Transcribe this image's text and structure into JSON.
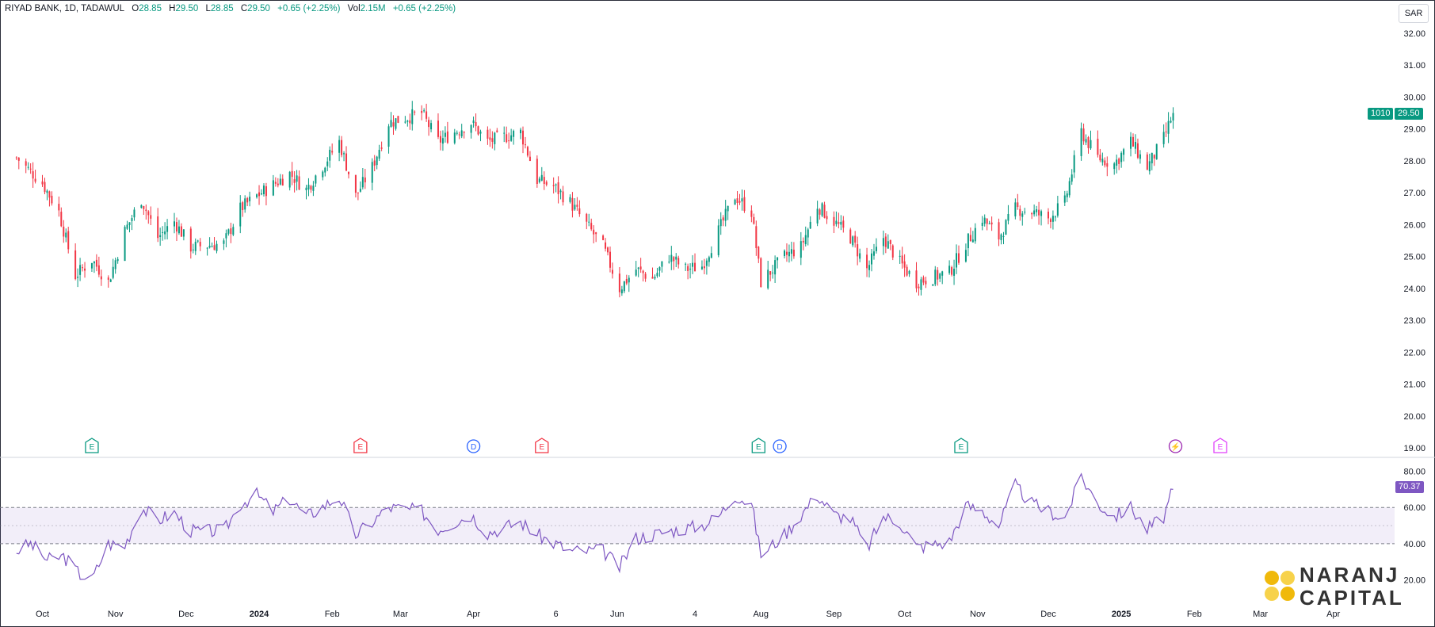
{
  "header": {
    "symbol": "RIYAD BANK, 1D, TADAWUL",
    "open_label": "O",
    "open": "28.85",
    "high_label": "H",
    "high": "29.50",
    "low_label": "L",
    "low": "28.85",
    "close_label": "C",
    "close": "29.50",
    "change": "+0.65 (+2.25%)",
    "vol_label": "Vol",
    "vol": "2.15M",
    "vol_change": "+0.65 (+2.25%)"
  },
  "currency": "SAR",
  "price_badge": {
    "symbol_code": "1010",
    "price": "29.50"
  },
  "rsi_badge": "70.37",
  "logo": {
    "line1": "NARANJ",
    "line2": "CAPITAL"
  },
  "colors": {
    "up": "#089981",
    "down": "#f23645",
    "rsi": "#7e57c2",
    "band": "#7e57c2"
  },
  "chart_data": [
    {
      "type": "candlestick",
      "price_axis": {
        "ylim": [
          19.0,
          32.0
        ],
        "ticks": [
          "32.00",
          "31.00",
          "30.00",
          "29.00",
          "28.00",
          "27.00",
          "26.00",
          "25.00",
          "24.00",
          "23.00",
          "22.00",
          "21.00",
          "20.00",
          "19.00"
        ]
      },
      "time_axis": {
        "ticks": [
          "Oct",
          "Nov",
          "Dec",
          "2024",
          "Feb",
          "Mar",
          "Apr",
          "6",
          "Jun",
          "4",
          "Aug",
          "Sep",
          "Oct",
          "Nov",
          "Dec",
          "2025",
          "Feb",
          "Mar",
          "Apr"
        ]
      },
      "close_path": [
        [
          "Sep 20 2023",
          28.1
        ],
        [
          "Oct 1 2023",
          27.3
        ],
        [
          "Oct 8 2023",
          26.4
        ],
        [
          "Oct 15 2023",
          24.4
        ],
        [
          "Oct 22 2023",
          24.9
        ],
        [
          "Oct 29 2023",
          24.2
        ],
        [
          "Nov 5 2023",
          25.8
        ],
        [
          "Nov 12 2023",
          26.8
        ],
        [
          "Nov 19 2023",
          25.6
        ],
        [
          "Nov 26 2023",
          26.1
        ],
        [
          "Dec 3 2023",
          25.3
        ],
        [
          "Dec 17 2023",
          25.4
        ],
        [
          "Dec 24 2023",
          26.5
        ],
        [
          "Dec 31 2023",
          26.9
        ],
        [
          "Jan 14 2024",
          27.6
        ],
        [
          "Jan 21 2024",
          27.1
        ],
        [
          "Feb 4 2024",
          28.6
        ],
        [
          "Feb 11 2024",
          26.9
        ],
        [
          "Feb 18 2024",
          27.8
        ],
        [
          "Feb 25 2024",
          29.2
        ],
        [
          "Mar 10 2024",
          29.5
        ],
        [
          "Mar 17 2024",
          28.6
        ],
        [
          "Mar 31 2024",
          29.2
        ],
        [
          "Apr 7 2024",
          28.6
        ],
        [
          "Apr 21 2024",
          28.9
        ],
        [
          "Apr 28 2024",
          27.4
        ],
        [
          "May 5 2024",
          27.2
        ],
        [
          "May 12 2024",
          26.7
        ],
        [
          "May 19 2024",
          26.0
        ],
        [
          "May 26 2024",
          25.3
        ],
        [
          "Jun 2 2024",
          24.0
        ],
        [
          "Jun 9 2024",
          24.6
        ],
        [
          "Jun 16 2024",
          24.3
        ],
        [
          "Jun 23 2024",
          25.0
        ],
        [
          "Jun 30 2024",
          24.6
        ],
        [
          "Jul 7 2024",
          24.7
        ],
        [
          "Jul 14 2024",
          25.8
        ],
        [
          "Jul 21 2024",
          26.9
        ],
        [
          "Jul 28 2024",
          26.4
        ],
        [
          "Aug 1 2024",
          24.2
        ],
        [
          "Aug 11 2024",
          25.0
        ],
        [
          "Aug 18 2024",
          25.3
        ],
        [
          "Aug 25 2024",
          26.6
        ],
        [
          "Sep 1 2024",
          26.1
        ],
        [
          "Sep 8 2024",
          25.6
        ],
        [
          "Sep 15 2024",
          24.6
        ],
        [
          "Sep 22 2024",
          25.6
        ],
        [
          "Sep 29 2024",
          24.8
        ],
        [
          "Oct 6 2024",
          24.2
        ],
        [
          "Oct 20 2024",
          24.5
        ],
        [
          "Oct 27 2024",
          25.4
        ],
        [
          "Nov 3 2024",
          26.2
        ],
        [
          "Nov 10 2024",
          25.6
        ],
        [
          "Nov 17 2024",
          26.5
        ],
        [
          "Nov 24 2024",
          26.4
        ],
        [
          "Dec 1 2024",
          26.2
        ],
        [
          "Dec 8 2024",
          26.7
        ],
        [
          "Dec 15 2024",
          28.9
        ],
        [
          "Dec 22 2024",
          28.1
        ],
        [
          "Dec 29 2024",
          27.9
        ],
        [
          "Jan 5 2025",
          28.6
        ],
        [
          "Jan 12 2025",
          27.8
        ],
        [
          "Jan 19 2025",
          28.7
        ],
        [
          "Jan 23 2025",
          29.5
        ]
      ]
    },
    {
      "type": "line",
      "name": "RSI",
      "ylim": [
        15,
        82
      ],
      "ticks": [
        "80.00",
        "60.00",
        "40.00",
        "20.00"
      ],
      "band": [
        40,
        60
      ],
      "mid": 50,
      "path": [
        [
          "Sep 20 2023",
          36
        ],
        [
          "Sep 26 2023",
          40
        ],
        [
          "Oct 3 2023",
          31
        ],
        [
          "Oct 10 2023",
          33
        ],
        [
          "Oct 17 2023",
          23
        ],
        [
          "Oct 22 2023",
          20
        ],
        [
          "Oct 29 2023",
          40
        ],
        [
          "Nov 5 2023",
          39
        ],
        [
          "Nov 12 2023",
          60
        ],
        [
          "Nov 19 2023",
          53
        ],
        [
          "Nov 26 2023",
          57
        ],
        [
          "Dec 3 2023",
          47
        ],
        [
          "Dec 17 2023",
          47
        ],
        [
          "Dec 24 2023",
          62
        ],
        [
          "Dec 31 2023",
          67
        ],
        [
          "Jan 7 2024",
          58
        ],
        [
          "Jan 14 2024",
          65
        ],
        [
          "Jan 21 2024",
          55
        ],
        [
          "Feb 4 2024",
          66
        ],
        [
          "Feb 11 2024",
          45
        ],
        [
          "Feb 18 2024",
          52
        ],
        [
          "Feb 25 2024",
          60
        ],
        [
          "Mar 10 2024",
          58
        ],
        [
          "Mar 17 2024",
          48
        ],
        [
          "Mar 31 2024",
          56
        ],
        [
          "Apr 7 2024",
          46
        ],
        [
          "Apr 21 2024",
          52
        ],
        [
          "Apr 28 2024",
          45
        ],
        [
          "May 12 2024",
          36
        ],
        [
          "May 26 2024",
          36
        ],
        [
          "Jun 2 2024",
          27
        ],
        [
          "Jun 9 2024",
          43
        ],
        [
          "Jun 23 2024",
          47
        ],
        [
          "Jul 7 2024",
          50
        ],
        [
          "Jul 14 2024",
          55
        ],
        [
          "Jul 21 2024",
          67
        ],
        [
          "Jul 28 2024",
          62
        ],
        [
          "Aug 1 2024",
          34
        ],
        [
          "Aug 11 2024",
          45
        ],
        [
          "Aug 25 2024",
          67
        ],
        [
          "Sep 1 2024",
          56
        ],
        [
          "Sep 8 2024",
          54
        ],
        [
          "Sep 15 2024",
          37
        ],
        [
          "Sep 22 2024",
          55
        ],
        [
          "Sep 29 2024",
          52
        ],
        [
          "Oct 6 2024",
          38
        ],
        [
          "Oct 20 2024",
          41
        ],
        [
          "Oct 27 2024",
          61
        ],
        [
          "Nov 3 2024",
          58
        ],
        [
          "Nov 10 2024",
          50
        ],
        [
          "Nov 17 2024",
          72
        ],
        [
          "Nov 24 2024",
          62
        ],
        [
          "Dec 1 2024",
          58
        ],
        [
          "Dec 8 2024",
          54
        ],
        [
          "Dec 15 2024",
          77
        ],
        [
          "Dec 22 2024",
          62
        ],
        [
          "Dec 29 2024",
          55
        ],
        [
          "Jan 5 2025",
          60
        ],
        [
          "Jan 12 2025",
          48
        ],
        [
          "Jan 19 2025",
          55
        ],
        [
          "Jan 23 2025",
          70
        ]
      ]
    }
  ],
  "events": [
    {
      "label": "E",
      "date": "Oct 22 2023",
      "color": "#089981"
    },
    {
      "label": "E",
      "date": "Feb 13 2024",
      "color": "#f23645"
    },
    {
      "label": "D",
      "date": "Apr 1 2024",
      "color": "#2962ff"
    },
    {
      "label": "E",
      "date": "Apr 30 2024",
      "color": "#f23645"
    },
    {
      "label": "E",
      "date": "Jul 31 2024",
      "color": "#089981"
    },
    {
      "label": "D",
      "date": "Aug 9 2024",
      "color": "#2962ff"
    },
    {
      "label": "E",
      "date": "Oct 25 2024",
      "color": "#089981"
    },
    {
      "label": "⚡",
      "date": "Jan 24 2025",
      "color": "#9c27b0"
    },
    {
      "label": "E",
      "date": "Feb 12 2025",
      "color": "#e040fb"
    }
  ]
}
